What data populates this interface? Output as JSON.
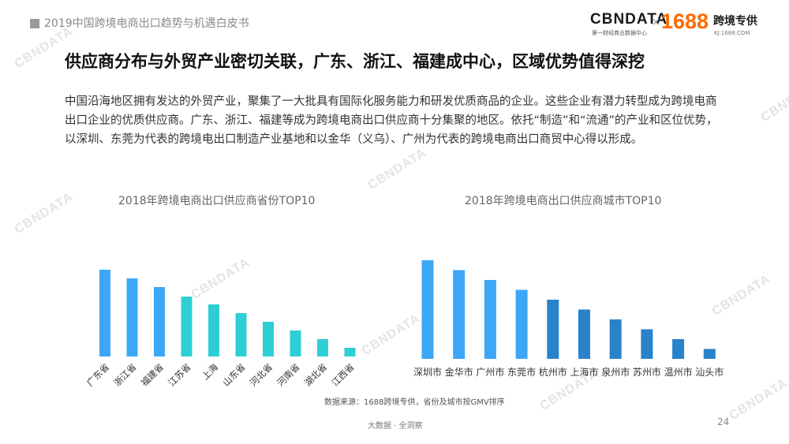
{
  "header": {
    "doc_title": "2019中国跨境电商出口趋势与机遇白皮书",
    "logo_cbn": "CBNDATA",
    "logo_cbn_sub": "第一财经商业数据中心",
    "logo_x": "×",
    "logo_1688": "1688",
    "logo_kj": "跨境专供",
    "logo_kj_sub": "KJ.1688.COM",
    "watermark": "CBNDATA"
  },
  "page_title": "供应商分布与外贸产业密切关联，广东、浙江、福建成中心，区域优势值得深挖",
  "intro": "中国沿海地区拥有发达的外贸产业，聚集了一大批具有国际化服务能力和研发优质商品的企业。这些企业有潜力转型成为跨境电商出口企业的优质供应商。广东、浙江、福建等成为跨境电商出口供应商十分集聚的地区。依托“制造”和“流通”的产业和区位优势，以深圳、东莞为代表的跨境电出口制造产业基地和以金华（义乌）、广州为代表的跨境电商出口商贸中心得以形成。",
  "chart_data": [
    {
      "type": "bar",
      "title": "2018年跨境电商出口供应商省份TOP10",
      "categories": [
        "广东省",
        "浙江省",
        "福建省",
        "江苏省",
        "上海",
        "山东省",
        "河北省",
        "河南省",
        "湖北省",
        "江西省"
      ],
      "values": [
        100,
        90,
        80,
        69,
        60,
        50,
        40,
        30,
        20,
        10
      ],
      "colors": [
        "#3da7f7",
        "#3da7f7",
        "#3da7f7",
        "#2ecfd4",
        "#2ecfd4",
        "#2ecfd4",
        "#2ecfd4",
        "#2ecfd4",
        "#2ecfd4",
        "#2ecfd4"
      ],
      "xlabel": "",
      "ylabel": "",
      "ylim": [
        0,
        100
      ],
      "axes_visible": false,
      "grid": false,
      "tick_label_rotation": -45
    },
    {
      "type": "bar",
      "title": "2018年跨境电商出口供应商城市TOP10",
      "categories": [
        "深圳市",
        "金华市",
        "广州市",
        "东莞市",
        "杭州市",
        "上海市",
        "泉州市",
        "苏州市",
        "温州市",
        "汕头市"
      ],
      "values": [
        100,
        90,
        80,
        70,
        60,
        50,
        40,
        30,
        20,
        10
      ],
      "colors": [
        "#3da7f7",
        "#3da7f7",
        "#3da7f7",
        "#3da7f7",
        "#2a82c9",
        "#2a82c9",
        "#2a82c9",
        "#2a82c9",
        "#2a82c9",
        "#2a82c9"
      ],
      "xlabel": "",
      "ylabel": "",
      "ylim": [
        0,
        100
      ],
      "axes_visible": false,
      "grid": false,
      "tick_label_rotation": 0
    }
  ],
  "source": "数据来源：1688跨境专供，省份及城市按GMV排序",
  "footer": "大数据 · 全洞察",
  "page_number": "24"
}
